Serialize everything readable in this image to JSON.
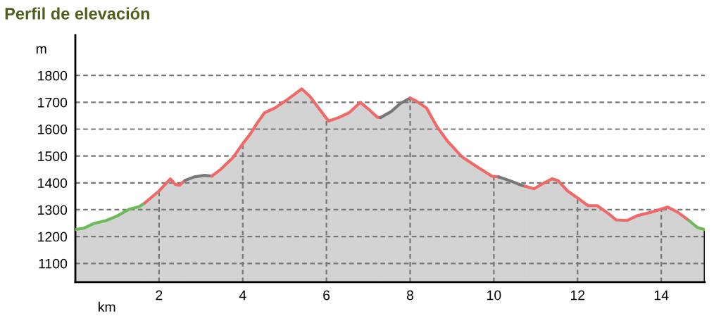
{
  "chart_data": {
    "type": "area",
    "title": "Perfil de elevación",
    "xlabel": "km",
    "ylabel": "m",
    "series": [
      {
        "color": "#6cbb5a",
        "x": [
          0,
          0.2,
          0.45,
          0.74,
          0.99,
          1.29,
          1.53,
          1.66
        ],
        "values": [
          1226,
          1231,
          1249,
          1260,
          1276,
          1302,
          1312,
          1325
        ]
      },
      {
        "color": "#f06868",
        "x": [
          1.66,
          2.0,
          2.27,
          2.39,
          2.49,
          2.62
        ],
        "values": [
          1325,
          1370,
          1415,
          1394,
          1391,
          1409
        ]
      },
      {
        "color": "#777777",
        "x": [
          2.62,
          2.84,
          3.09,
          3.26
        ],
        "values": [
          1409,
          1422,
          1428,
          1425
        ]
      },
      {
        "color": "#f06868",
        "x": [
          3.26,
          3.48,
          3.76,
          4.0,
          4.18,
          4.35,
          4.52,
          4.77,
          5.03,
          5.41,
          5.61,
          5.78,
          6.05,
          6.29,
          6.54,
          6.81,
          7.01,
          7.21,
          7.29
        ],
        "values": [
          1425,
          1451,
          1493,
          1546,
          1582,
          1624,
          1661,
          1679,
          1706,
          1750,
          1721,
          1685,
          1630,
          1643,
          1661,
          1700,
          1674,
          1645,
          1643
        ]
      },
      {
        "color": "#777777",
        "x": [
          7.29,
          7.55,
          7.76,
          8.0
        ],
        "values": [
          1643,
          1666,
          1695,
          1716
        ]
      },
      {
        "color": "#f06868",
        "x": [
          8.0,
          8.13,
          8.39,
          8.64,
          8.89,
          9.23,
          9.56,
          9.95,
          10.12
        ],
        "values": [
          1716,
          1706,
          1679,
          1609,
          1556,
          1498,
          1464,
          1425,
          1422
        ]
      },
      {
        "color": "#777777",
        "x": [
          10.12,
          10.4,
          10.66,
          10.74
        ],
        "values": [
          1422,
          1407,
          1391,
          1388
        ]
      },
      {
        "color": "#f06868",
        "x": [
          10.74,
          10.96,
          11.13,
          11.39,
          11.53,
          11.76,
          12.0,
          12.25,
          12.47,
          12.71,
          12.92,
          13.19,
          13.43,
          13.76,
          14.15,
          14.39,
          14.66
        ],
        "values": [
          1388,
          1378,
          1394,
          1415,
          1409,
          1370,
          1344,
          1315,
          1315,
          1289,
          1262,
          1260,
          1278,
          1291,
          1310,
          1291,
          1260
        ]
      },
      {
        "color": "#6cbb5a",
        "x": [
          14.66,
          14.86,
          15.04
        ],
        "values": [
          1260,
          1234,
          1226
        ]
      }
    ],
    "xlim": [
      0,
      15.04
    ],
    "xticks": [
      2,
      4,
      6,
      8,
      10,
      12,
      14
    ],
    "ylim": [
      1030,
      1950
    ],
    "yticks": [
      1100,
      1200,
      1300,
      1400,
      1500,
      1600,
      1700,
      1800
    ],
    "grid": true,
    "line_style": "solid"
  }
}
